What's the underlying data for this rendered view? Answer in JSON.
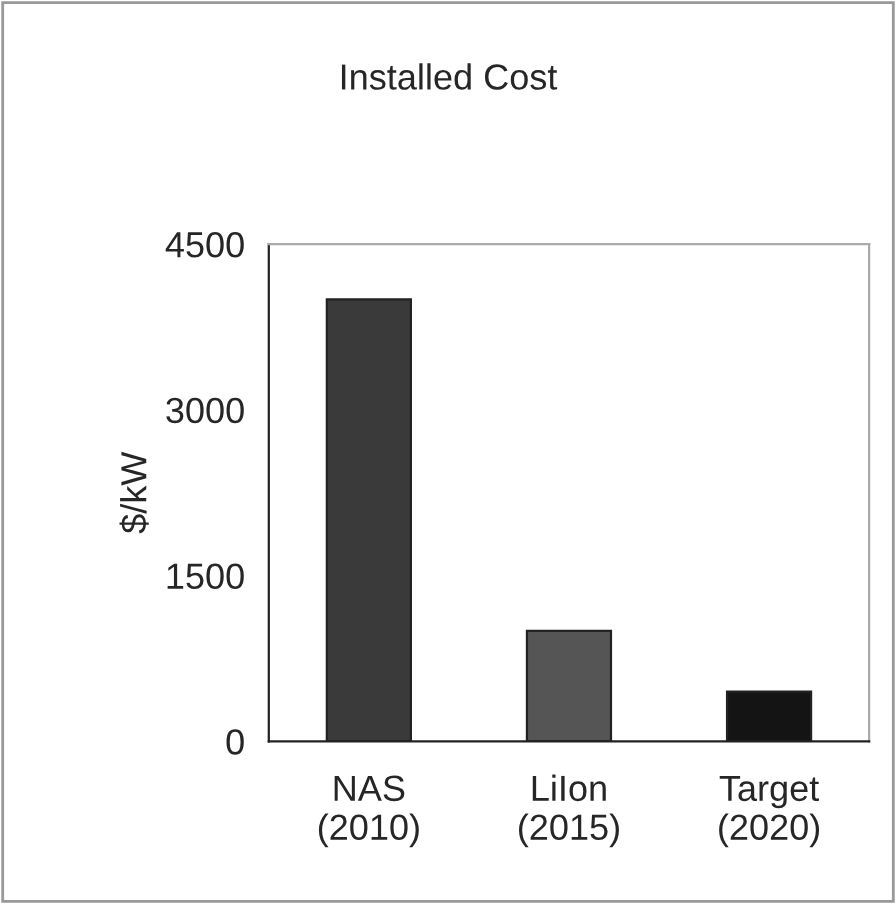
{
  "chart_data": {
    "type": "bar",
    "title": "Installed Cost",
    "ylabel": "$/kW",
    "categories": [
      "NAS\n(2010)",
      "LiIon\n(2015)",
      "Target\n(2020)"
    ],
    "values": [
      4000,
      1000,
      450
    ],
    "colors": [
      "#3a3a3a",
      "#555555",
      "#141414"
    ],
    "ylim": [
      0,
      4500
    ],
    "yticks": [
      0,
      1500,
      3000,
      4500
    ],
    "grid": false,
    "legend": false
  }
}
